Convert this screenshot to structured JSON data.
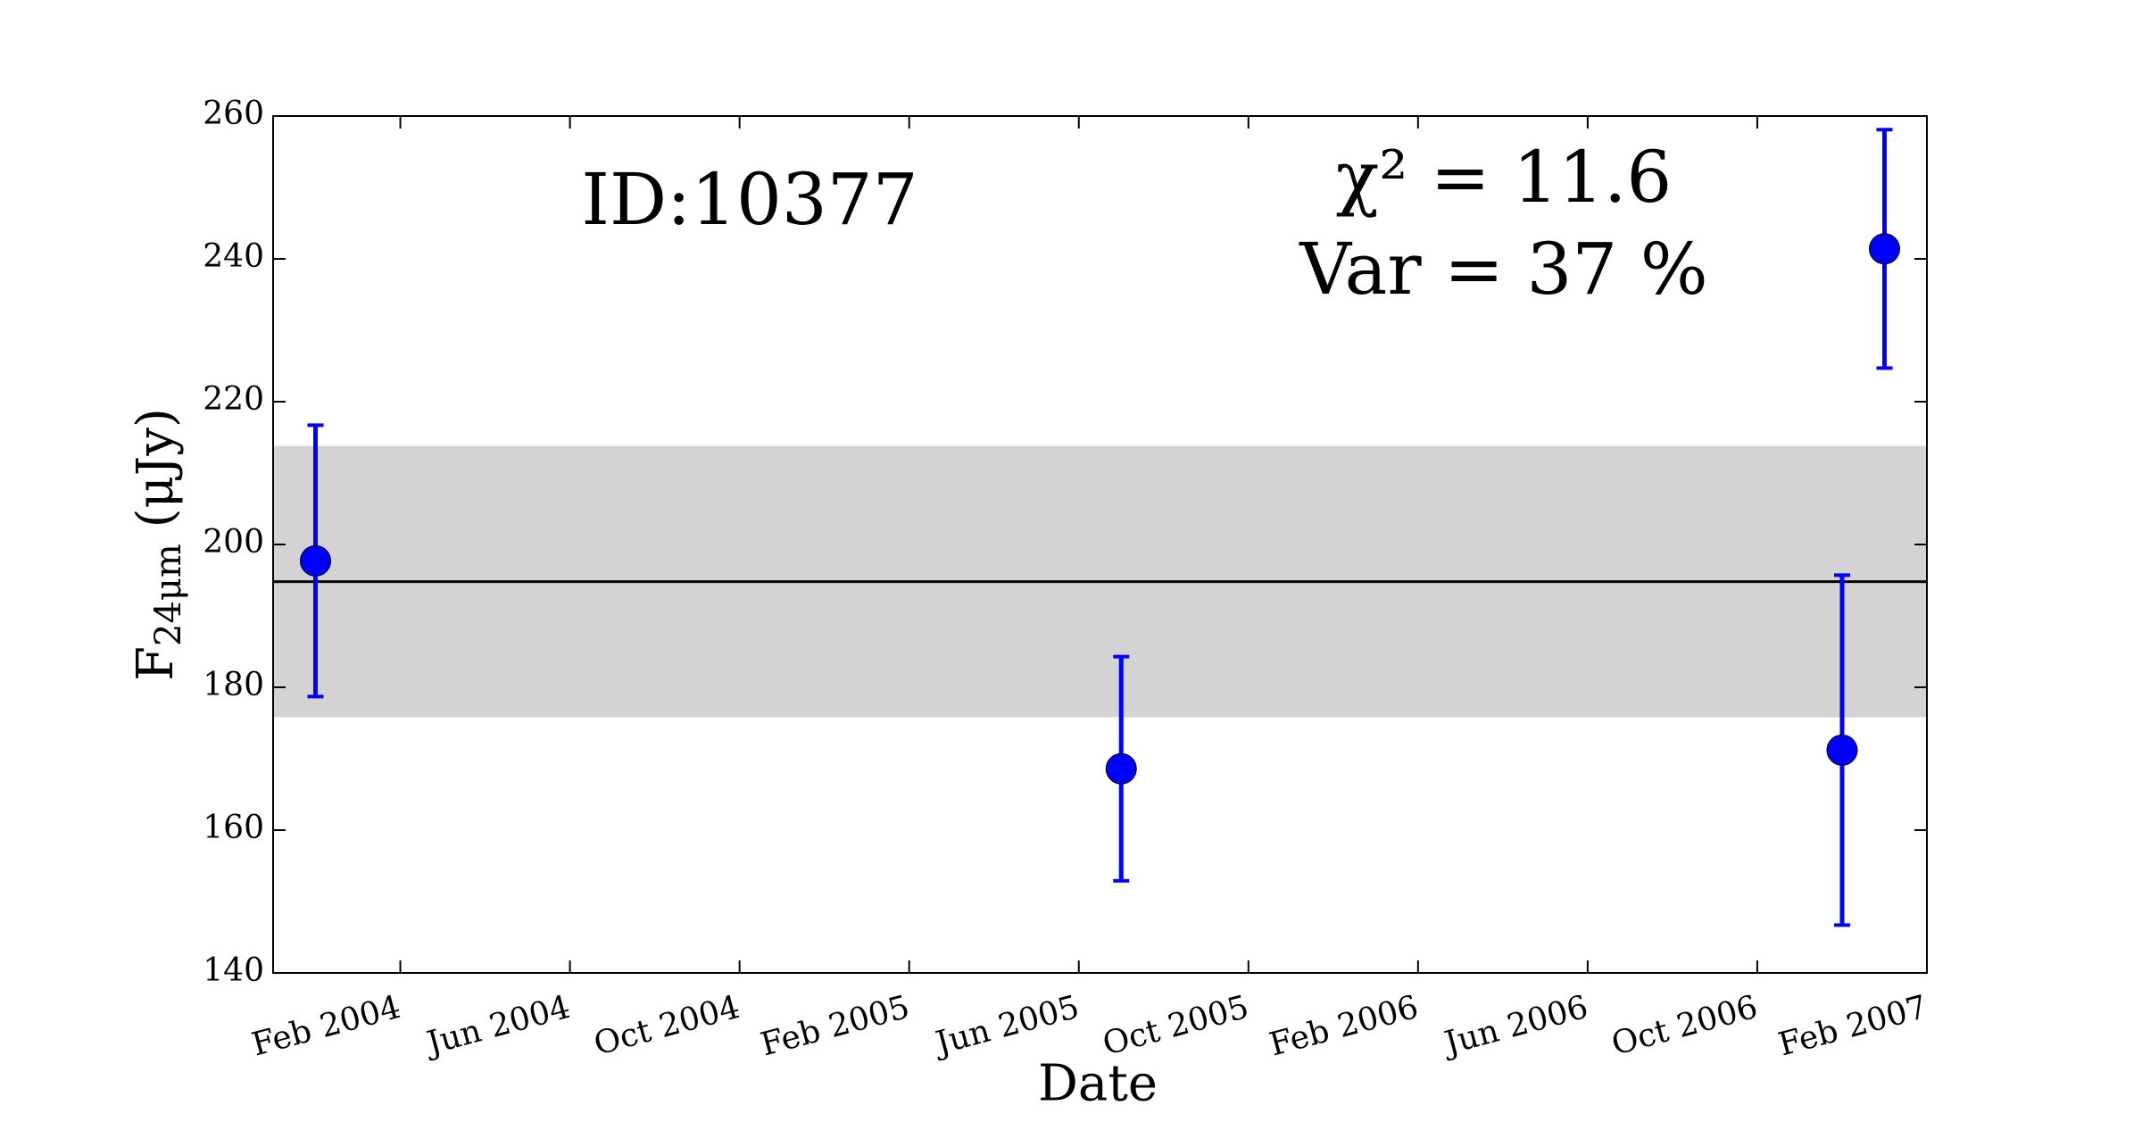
{
  "chart_data": {
    "type": "errorbar",
    "annotations": [
      "ID:10377",
      "χ² = 11.6",
      "Var = 37 %"
    ],
    "xlabel": "Date",
    "ylabel": [
      "F",
      "24μm",
      " (μJy)"
    ],
    "x": [
      "2003-12",
      "2005-07",
      "2006-12",
      "2007-01"
    ],
    "series": [
      {
        "color": "#0000ff",
        "values": [
          197.7,
          168.6,
          171.2,
          241.4
        ],
        "errors": [
          19.0,
          15.7,
          24.5,
          16.7
        ]
      }
    ],
    "mean": 194.8,
    "mean_color": "#000000",
    "band": [
      175.8,
      213.8
    ],
    "band_color": "#d3d3d3",
    "xlim": [
      "2003-11",
      "2007-02"
    ],
    "xticks": [
      {
        "value": "2004-02",
        "label": "Feb 2004"
      },
      {
        "value": "2004-06",
        "label": "Jun 2004"
      },
      {
        "value": "2004-10",
        "label": "Oct 2004"
      },
      {
        "value": "2005-02",
        "label": "Feb 2005"
      },
      {
        "value": "2005-06",
        "label": "Jun 2005"
      },
      {
        "value": "2005-10",
        "label": "Oct 2005"
      },
      {
        "value": "2006-02",
        "label": "Feb 2006"
      },
      {
        "value": "2006-06",
        "label": "Jun 2006"
      },
      {
        "value": "2006-10",
        "label": "Oct 2006"
      },
      {
        "value": "2007-02",
        "label": "Feb 2007"
      }
    ],
    "ylim": [
      140,
      260
    ],
    "yticks": [
      140,
      160,
      180,
      200,
      220,
      240,
      260
    ]
  }
}
